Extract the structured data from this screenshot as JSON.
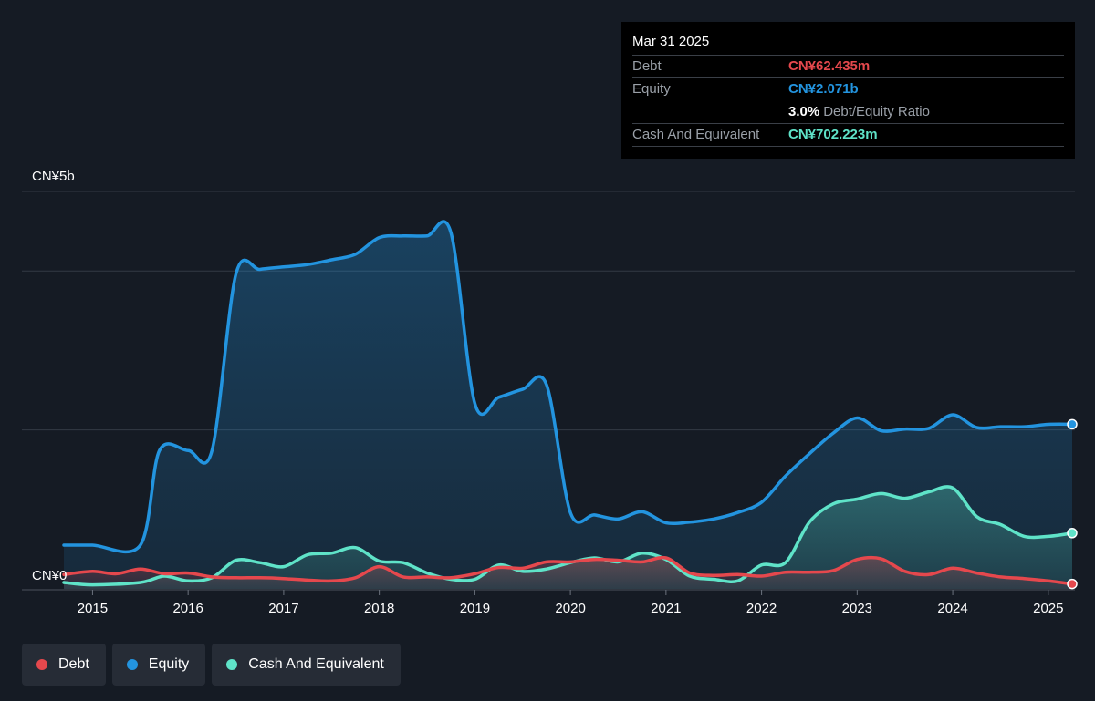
{
  "colors": {
    "background": "#151b24",
    "debt": "#e5484d",
    "equity": "#2394df",
    "cash": "#5fe3c8",
    "grid": "#2e3440",
    "axis_text": "#ffffff"
  },
  "tooltip": {
    "date": "Mar 31 2025",
    "debt_label": "Debt",
    "debt_value": "CN¥62.435m",
    "equity_label": "Equity",
    "equity_value": "CN¥2.071b",
    "ratio_value": "3.0%",
    "ratio_label": "Debt/Equity Ratio",
    "cash_label": "Cash And Equivalent",
    "cash_value": "CN¥702.223m"
  },
  "legend": [
    {
      "name": "Debt",
      "color": "#e5484d"
    },
    {
      "name": "Equity",
      "color": "#2394df"
    },
    {
      "name": "Cash And Equivalent",
      "color": "#5fe3c8"
    }
  ],
  "chart_data": {
    "type": "area",
    "title": "",
    "xlabel": "",
    "ylabel": "",
    "y_top_label": "CN¥5b",
    "y_bottom_label": "CN¥0",
    "ylim": [
      0,
      5
    ],
    "xlim": [
      2014.7,
      2025.25
    ],
    "grid": true,
    "x_tick_labels": [
      "2015",
      "2016",
      "2017",
      "2018",
      "2019",
      "2020",
      "2021",
      "2022",
      "2023",
      "2024",
      "2025"
    ],
    "series": [
      {
        "name": "Equity",
        "color": "#2394df",
        "x": [
          2014.7,
          2015.0,
          2015.5,
          2015.7,
          2016.0,
          2016.25,
          2016.5,
          2016.75,
          2017.0,
          2017.25,
          2017.5,
          2017.75,
          2018.0,
          2018.25,
          2018.5,
          2018.75,
          2019.0,
          2019.25,
          2019.5,
          2019.75,
          2020.0,
          2020.25,
          2020.5,
          2020.75,
          2021.0,
          2021.25,
          2021.5,
          2021.75,
          2022.0,
          2022.25,
          2022.5,
          2022.75,
          2023.0,
          2023.25,
          2023.5,
          2023.75,
          2024.0,
          2024.25,
          2024.5,
          2024.75,
          2025.0,
          2025.25
        ],
        "values": [
          0.55,
          0.55,
          0.55,
          1.74,
          1.74,
          1.74,
          3.96,
          4.02,
          4.05,
          4.08,
          4.14,
          4.21,
          4.42,
          4.44,
          4.44,
          4.48,
          2.33,
          2.41,
          2.51,
          2.57,
          0.96,
          0.93,
          0.88,
          0.97,
          0.83,
          0.84,
          0.88,
          0.96,
          1.09,
          1.42,
          1.7,
          1.96,
          2.15,
          1.99,
          2.01,
          2.02,
          2.19,
          2.03,
          2.04,
          2.04,
          2.07,
          2.071
        ]
      },
      {
        "name": "Cash And Equivalent",
        "color": "#5fe3c8",
        "x": [
          2014.7,
          2015.0,
          2015.5,
          2015.75,
          2016.0,
          2016.25,
          2016.5,
          2016.75,
          2017.0,
          2017.25,
          2017.5,
          2017.75,
          2018.0,
          2018.25,
          2018.5,
          2018.75,
          2019.0,
          2019.25,
          2019.5,
          2019.75,
          2020.0,
          2020.25,
          2020.5,
          2020.75,
          2021.0,
          2021.25,
          2021.5,
          2021.75,
          2022.0,
          2022.25,
          2022.5,
          2022.75,
          2023.0,
          2023.25,
          2023.5,
          2023.75,
          2024.0,
          2024.25,
          2024.5,
          2024.75,
          2025.0,
          2025.25
        ],
        "values": [
          0.08,
          0.05,
          0.08,
          0.16,
          0.1,
          0.14,
          0.36,
          0.33,
          0.28,
          0.43,
          0.45,
          0.52,
          0.35,
          0.33,
          0.2,
          0.12,
          0.12,
          0.3,
          0.22,
          0.25,
          0.33,
          0.39,
          0.34,
          0.45,
          0.37,
          0.16,
          0.12,
          0.1,
          0.3,
          0.33,
          0.84,
          1.07,
          1.13,
          1.2,
          1.14,
          1.22,
          1.27,
          0.91,
          0.81,
          0.66,
          0.66,
          0.702
        ]
      },
      {
        "name": "Debt",
        "color": "#e5484d",
        "x": [
          2014.7,
          2015.0,
          2015.25,
          2015.5,
          2015.75,
          2016.0,
          2016.25,
          2016.5,
          2016.75,
          2017.0,
          2017.25,
          2017.5,
          2017.75,
          2018.0,
          2018.25,
          2018.5,
          2018.75,
          2019.0,
          2019.25,
          2019.5,
          2019.75,
          2020.0,
          2020.25,
          2020.5,
          2020.75,
          2021.0,
          2021.25,
          2021.5,
          2021.75,
          2022.0,
          2022.25,
          2022.5,
          2022.75,
          2023.0,
          2023.25,
          2023.5,
          2023.75,
          2024.0,
          2024.25,
          2024.5,
          2024.75,
          2025.0,
          2025.25
        ],
        "values": [
          0.18,
          0.22,
          0.19,
          0.25,
          0.19,
          0.2,
          0.15,
          0.14,
          0.14,
          0.13,
          0.11,
          0.1,
          0.14,
          0.28,
          0.15,
          0.15,
          0.14,
          0.19,
          0.27,
          0.26,
          0.34,
          0.34,
          0.37,
          0.36,
          0.34,
          0.39,
          0.2,
          0.17,
          0.18,
          0.16,
          0.21,
          0.21,
          0.23,
          0.37,
          0.38,
          0.22,
          0.18,
          0.26,
          0.2,
          0.15,
          0.13,
          0.1,
          0.062
        ]
      }
    ]
  }
}
